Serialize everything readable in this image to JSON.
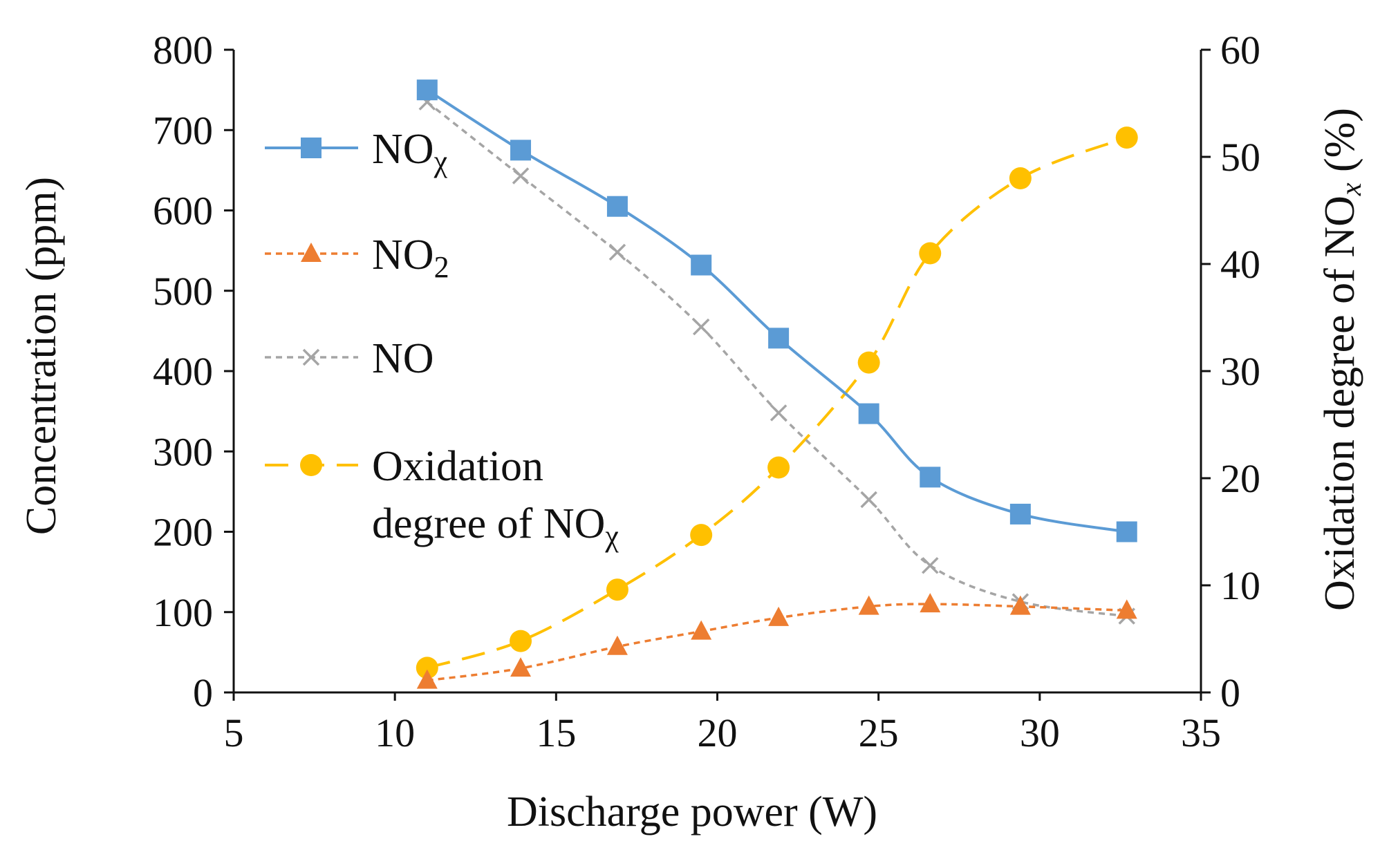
{
  "chart_data": {
    "type": "line",
    "xlabel": "Discharge power (W)",
    "ylabel": "Concentration (ppm)",
    "y2label_main": "Oxidation degree of NO",
    "y2label_sub": "x",
    "y2label_end": " (%)",
    "xlim": [
      5,
      35
    ],
    "ylim": [
      0,
      800
    ],
    "y2lim": [
      0,
      60
    ],
    "xticks": [
      "5",
      "10",
      "15",
      "20",
      "25",
      "30",
      "35"
    ],
    "yticks": [
      "0",
      "100",
      "200",
      "300",
      "400",
      "500",
      "600",
      "700",
      "800"
    ],
    "y2ticks": [
      "0",
      "10",
      "20",
      "30",
      "40",
      "50",
      "60"
    ],
    "grid": false,
    "legend_position": "upper-left",
    "x": [
      11.0,
      13.9,
      16.9,
      19.5,
      21.9,
      24.7,
      26.6,
      29.4,
      32.7
    ],
    "series": [
      {
        "name": "NOχ",
        "name_main": "NO",
        "name_sub": "χ",
        "axis": "left",
        "marker": "square",
        "line": "solid",
        "color": "#5B9BD5",
        "values": [
          750,
          675,
          605,
          532,
          441,
          347,
          268,
          222,
          200
        ]
      },
      {
        "name": "NO2",
        "name_main": "NO",
        "name_sub": "2",
        "axis": "left",
        "marker": "triangle",
        "line": "dotted",
        "color": "#ED7D31",
        "values": [
          15,
          30,
          57,
          76,
          93,
          107,
          110,
          107,
          102
        ]
      },
      {
        "name": "NO",
        "name_main": "NO",
        "name_sub": "",
        "axis": "left",
        "marker": "x",
        "line": "dotted",
        "color": "#A5A5A5",
        "values": [
          735,
          643,
          548,
          455,
          348,
          240,
          158,
          113,
          95
        ]
      },
      {
        "name": "Oxidation degree of NOχ",
        "name_line1": "Oxidation",
        "name_line2_main": "degree of NO",
        "name_line2_sub": "χ",
        "axis": "right",
        "marker": "circle",
        "line": "dashed",
        "color": "#FFC000",
        "values": [
          2.3,
          4.8,
          9.6,
          14.7,
          21.0,
          30.8,
          41.0,
          48.0,
          51.8
        ]
      }
    ]
  }
}
